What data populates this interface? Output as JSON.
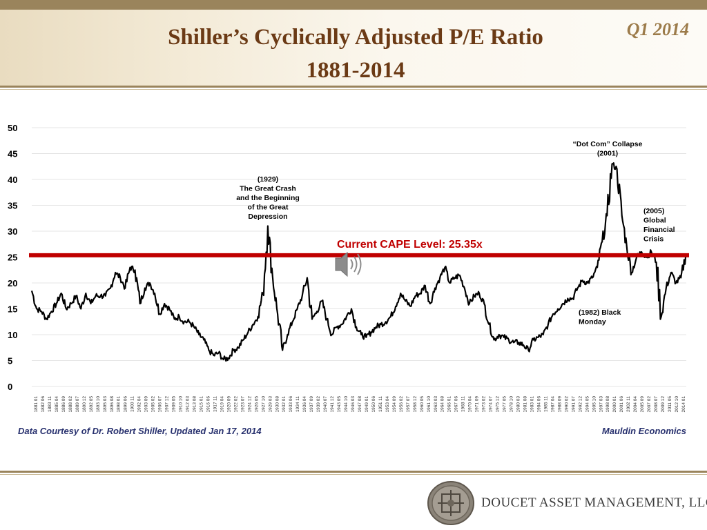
{
  "header": {
    "title_line1": "Shiller’s Cyclically Adjusted P/E Ratio",
    "title_line2": "1881-2014",
    "quarter": "Q1 2014"
  },
  "footer": {
    "source_note": "Data Courtesy of Dr. Robert Shiller, Updated Jan 17, 2014",
    "brand_note": "Mauldin Economics",
    "company_name": "DOUCET ASSET MANAGEMENT, LLC"
  },
  "colors": {
    "title": "#6b3a15",
    "quarter": "#9c7b4a",
    "series_line": "#000000",
    "reference_line": "#c00000",
    "reference_label": "#c00000",
    "footer_notes": "#27306e"
  },
  "chart_data": {
    "type": "line",
    "title": "",
    "xlabel": "",
    "ylabel": "",
    "ylim": [
      0,
      50
    ],
    "xlim": [
      1881,
      2014.1
    ],
    "grid": true,
    "legend": "none",
    "y_ticks": [
      "0",
      "5",
      "10",
      "15",
      "20",
      "25",
      "30",
      "35",
      "40",
      "45",
      "50"
    ],
    "x_tick_labels": [
      "1881 01",
      "1882 06",
      "1883 11",
      "1885 04",
      "1886 09",
      "1888 02",
      "1889 07",
      "1890 12",
      "1892 05",
      "1893 10",
      "1895 03",
      "1896 08",
      "1898 01",
      "1899 06",
      "1900 11",
      "1902 04",
      "1903 09",
      "1905 02",
      "1906 07",
      "1907 12",
      "1909 05",
      "1910 10",
      "1912 03",
      "1913 08",
      "1915 01",
      "1916 06",
      "1917 11",
      "1919 04",
      "1920 09",
      "1922 02",
      "1923 07",
      "1924 12",
      "1926 05",
      "1927 10",
      "1929 03",
      "1930 08",
      "1932 01",
      "1933 06",
      "1934 11",
      "1936 04",
      "1937 09",
      "1939 02",
      "1940 07",
      "1941 12",
      "1943 05",
      "1944 10",
      "1946 03",
      "1947 08",
      "1949 01",
      "1950 06",
      "1951 11",
      "1953 04",
      "1954 09",
      "1956 02",
      "1957 07",
      "1958 12",
      "1960 05",
      "1961 10",
      "1963 03",
      "1964 08",
      "1966 01",
      "1967 06",
      "1968 11",
      "1970 04",
      "1971 09",
      "1973 02",
      "1974 07",
      "1975 12",
      "1977 05",
      "1978 10",
      "1980 03",
      "1981 08",
      "1983 01",
      "1984 06",
      "1985 11",
      "1987 04",
      "1988 09",
      "1990 02",
      "1991 07",
      "1992 12",
      "1994 05",
      "1995 10",
      "1997 03",
      "1998 08",
      "2000 01",
      "2001 06",
      "2002 11",
      "2004 04",
      "2005 09",
      "2007 02",
      "2008 07",
      "2009 12",
      "2011 05",
      "2012 10",
      "2014 01"
    ],
    "series": [
      {
        "x": [
          1881,
          1882,
          1883,
          1884,
          1885,
          1886,
          1887,
          1888,
          1889,
          1890,
          1891,
          1892,
          1893,
          1894,
          1895,
          1896,
          1897,
          1898,
          1899,
          1900,
          1901,
          1902,
          1903,
          1904,
          1905,
          1906,
          1907,
          1908,
          1909,
          1910,
          1911,
          1912,
          1913,
          1914,
          1915,
          1916,
          1917,
          1918,
          1919,
          1920,
          1921,
          1922,
          1923,
          1924,
          1925,
          1926,
          1927,
          1928,
          1929,
          1930,
          1931,
          1932,
          1933,
          1934,
          1935,
          1936,
          1937,
          1938,
          1939,
          1940,
          1941,
          1942,
          1943,
          1944,
          1945,
          1946,
          1947,
          1948,
          1949,
          1950,
          1951,
          1952,
          1953,
          1954,
          1955,
          1956,
          1957,
          1958,
          1959,
          1960,
          1961,
          1962,
          1963,
          1964,
          1965,
          1966,
          1967,
          1968,
          1969,
          1970,
          1971,
          1972,
          1973,
          1974,
          1975,
          1976,
          1977,
          1978,
          1979,
          1980,
          1981,
          1982,
          1983,
          1984,
          1985,
          1986,
          1987,
          1988,
          1989,
          1990,
          1991,
          1992,
          1993,
          1994,
          1995,
          1996,
          1997,
          1998,
          1999,
          2000,
          2001,
          2002,
          2003,
          2004,
          2005,
          2006,
          2007,
          2008,
          2009,
          2010,
          2011,
          2012,
          2013,
          2014
        ],
        "values": [
          18.5,
          15,
          14.5,
          13,
          14.5,
          16,
          18,
          15,
          16,
          17.5,
          15,
          18,
          16,
          17.5,
          17.5,
          17.5,
          19,
          22,
          21,
          19,
          23,
          22.5,
          16,
          19,
          20,
          18,
          14,
          16,
          15,
          13,
          13.5,
          12.5,
          12.5,
          11.5,
          10,
          9,
          7,
          6,
          6.5,
          5.2,
          5.5,
          7,
          7.5,
          9,
          10.5,
          12,
          13.5,
          18,
          31,
          21,
          14,
          7,
          10,
          12.5,
          15,
          17.5,
          21,
          13,
          14.5,
          16.5,
          13,
          10,
          11.5,
          12,
          13.5,
          15,
          11.5,
          10,
          9.5,
          10.5,
          11.5,
          12,
          12.5,
          13.5,
          15.5,
          18,
          16.5,
          15.5,
          17.5,
          18,
          19.5,
          16,
          19,
          21,
          23,
          20,
          21,
          21.5,
          19,
          16,
          17.5,
          18,
          16,
          12,
          9,
          10,
          9.5,
          9,
          8.5,
          8.5,
          8,
          7,
          9,
          9.5,
          10,
          12,
          14,
          15,
          16,
          17,
          17,
          19,
          20.5,
          20,
          21,
          23,
          28,
          33,
          43,
          42,
          33,
          27,
          22,
          25,
          26,
          25,
          26,
          24,
          13.5,
          19,
          22,
          20,
          21,
          25.4
        ]
      }
    ],
    "reference_line": {
      "value": 25.35,
      "label": "Current CAPE Level: 25.35x"
    },
    "annotations": [
      {
        "x": 1929,
        "y": 31,
        "lines": [
          "(1929)",
          "The Great Crash",
          "and the Beginning",
          "of the Great",
          "Depression"
        ]
      },
      {
        "x": 2001,
        "y": 43,
        "lines": [
          "“Dot Com” Collapse",
          "(2001)"
        ]
      },
      {
        "x": 2005,
        "y": 26,
        "lines": [
          "(2005)",
          "Global",
          "Financial",
          "Crisis"
        ]
      },
      {
        "x": 1982,
        "y": 7,
        "lines": [
          "(1982) Black",
          "Monday"
        ]
      }
    ]
  }
}
